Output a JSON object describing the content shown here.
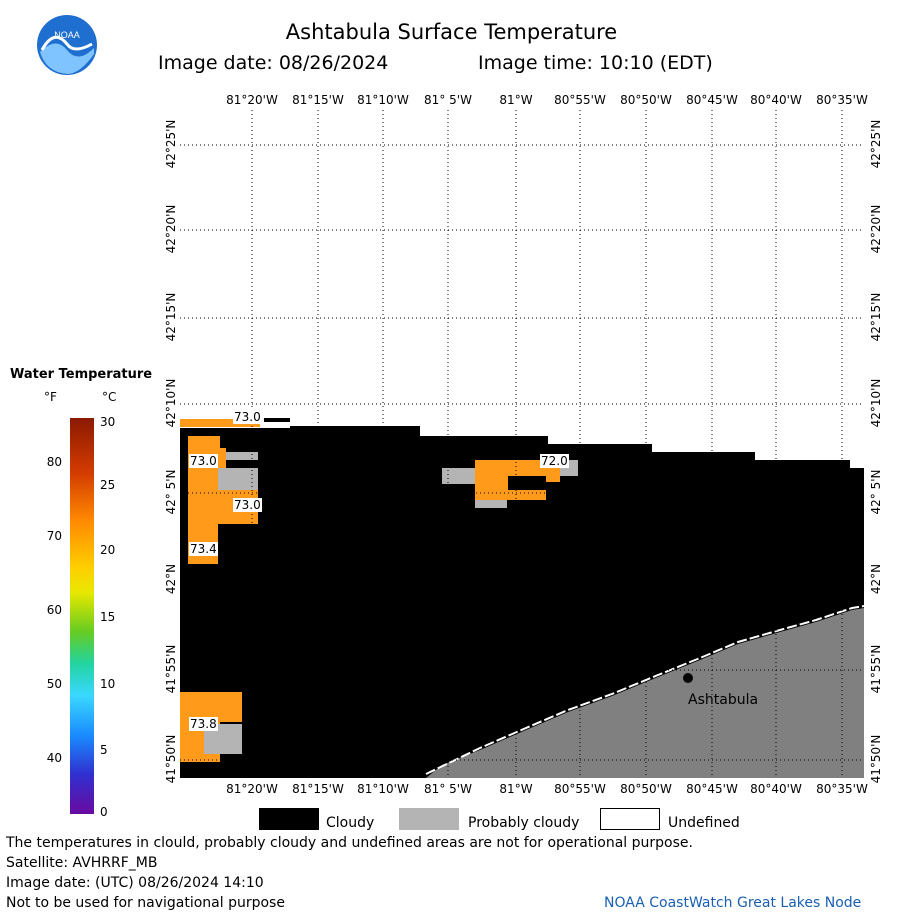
{
  "header": {
    "title": "Ashtabula Surface Temperature",
    "image_date": "Image date: 08/26/2024",
    "image_time": "Image time: 10:10 (EDT)",
    "logo_text": "NOAA"
  },
  "axes": {
    "lon_labels": [
      "81°20'W",
      "81°15'W",
      "81°10'W",
      "81° 5'W",
      "81°W",
      "80°55'W",
      "80°50'W",
      "80°45'W",
      "80°40'W",
      "80°35'W"
    ],
    "lat_labels": [
      "42°25'N",
      "42°20'N",
      "42°15'N",
      "42°10'N",
      "42° 5'N",
      "42°N",
      "41°55'N",
      "41°50'N"
    ]
  },
  "map": {
    "place_label": "Ashtabula",
    "temp_labels": [
      "73.0",
      "73.0",
      "73.0",
      "73.4",
      "72.0",
      "73.8"
    ]
  },
  "scale": {
    "title": "Water Temperature",
    "f_unit": "°F",
    "c_unit": "°C",
    "f_ticks": [
      "80",
      "70",
      "60",
      "50",
      "40"
    ],
    "c_ticks": [
      "30",
      "25",
      "20",
      "15",
      "10",
      "5",
      "0"
    ]
  },
  "legend": {
    "cloudy": "Cloudy",
    "probably_cloudy": "Probably cloudy",
    "undefined": "Undefined",
    "colors": {
      "cloudy": "#000000",
      "probably_cloudy": "#b4b4b4",
      "undefined": "#ffffff"
    }
  },
  "footer": {
    "note": "The temperatures in clould, probably cloudy and undefined areas are not for operational purpose.",
    "satellite": "Satellite: AVHRRF_MB",
    "utc": "Image date: (UTC) 08/26/2024  14:10",
    "nav": "Not to be used for navigational purpose",
    "credit": "NOAA CoastWatch Great Lakes Node"
  },
  "colors": {
    "water": "#ff9a1a",
    "land": "#808080",
    "cloud": "#000000"
  }
}
